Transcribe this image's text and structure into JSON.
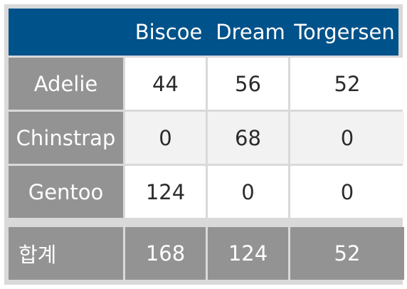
{
  "chart_data": {
    "type": "table",
    "columns": [
      "",
      "Biscoe",
      "Dream",
      "Torgersen"
    ],
    "rows": [
      {
        "label": "Adelie",
        "values": [
          44,
          56,
          52
        ]
      },
      {
        "label": "Chinstrap",
        "values": [
          0,
          68,
          0
        ]
      },
      {
        "label": "Gentoo",
        "values": [
          124,
          0,
          0
        ]
      }
    ],
    "total": {
      "label": "합계",
      "values": [
        168,
        124,
        52
      ]
    },
    "colors": {
      "header_bg": "#00528a",
      "label_bg": "#939393",
      "frame": "#d9d9d9",
      "alt_row": "#f2f2f2"
    }
  }
}
